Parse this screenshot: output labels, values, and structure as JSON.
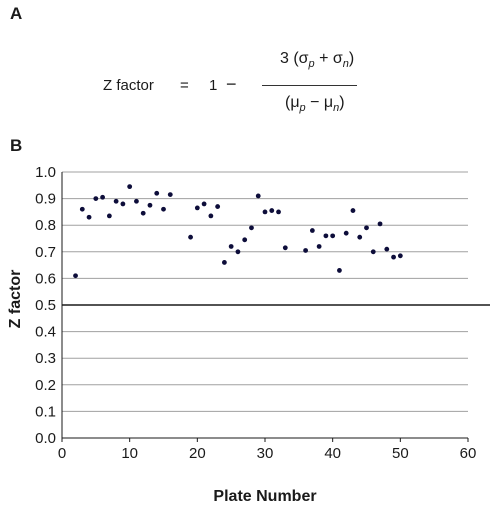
{
  "panels": {
    "a": "A",
    "b": "B"
  },
  "formula": {
    "lhs": "Z factor",
    "eq": "=",
    "one": "1",
    "minus": "−",
    "num_prefix": "3 (σ",
    "num_mid": " + σ",
    "num_suffix": ")",
    "den_prefix": "(μ",
    "den_mid": " − μ",
    "den_suffix": ")",
    "sub_p": "p",
    "sub_n": "n"
  },
  "chart_data": {
    "type": "scatter",
    "xlabel": "Plate Number",
    "ylabel": "Z factor",
    "xlim": [
      0,
      60
    ],
    "ylim": [
      0,
      1.0
    ],
    "x_ticks": [
      0,
      10,
      20,
      30,
      40,
      50,
      60
    ],
    "y_ticks": [
      "0.0",
      "0.1",
      "0.2",
      "0.3",
      "0.4",
      "0.5",
      "0.6",
      "0.7",
      "0.8",
      "0.9",
      "1.0"
    ],
    "grid": "horizontal",
    "threshold": 0.5,
    "colors": {
      "points": "#0d0d3a",
      "grid": "#a0a0a0",
      "threshold": "#1a1a1a"
    },
    "points": [
      {
        "x": 2,
        "y": 0.61
      },
      {
        "x": 3,
        "y": 0.86
      },
      {
        "x": 4,
        "y": 0.83
      },
      {
        "x": 5,
        "y": 0.9
      },
      {
        "x": 6,
        "y": 0.905
      },
      {
        "x": 7,
        "y": 0.835
      },
      {
        "x": 8,
        "y": 0.89
      },
      {
        "x": 9,
        "y": 0.88
      },
      {
        "x": 10,
        "y": 0.945
      },
      {
        "x": 11,
        "y": 0.89
      },
      {
        "x": 12,
        "y": 0.845
      },
      {
        "x": 13,
        "y": 0.875
      },
      {
        "x": 14,
        "y": 0.92
      },
      {
        "x": 15,
        "y": 0.86
      },
      {
        "x": 16,
        "y": 0.915
      },
      {
        "x": 19,
        "y": 0.755
      },
      {
        "x": 20,
        "y": 0.865
      },
      {
        "x": 21,
        "y": 0.88
      },
      {
        "x": 22,
        "y": 0.835
      },
      {
        "x": 23,
        "y": 0.87
      },
      {
        "x": 24,
        "y": 0.66
      },
      {
        "x": 25,
        "y": 0.72
      },
      {
        "x": 26,
        "y": 0.7
      },
      {
        "x": 27,
        "y": 0.745
      },
      {
        "x": 28,
        "y": 0.79
      },
      {
        "x": 29,
        "y": 0.91
      },
      {
        "x": 30,
        "y": 0.85
      },
      {
        "x": 31,
        "y": 0.855
      },
      {
        "x": 32,
        "y": 0.85
      },
      {
        "x": 33,
        "y": 0.715
      },
      {
        "x": 36,
        "y": 0.705
      },
      {
        "x": 37,
        "y": 0.78
      },
      {
        "x": 38,
        "y": 0.72
      },
      {
        "x": 39,
        "y": 0.76
      },
      {
        "x": 40,
        "y": 0.76
      },
      {
        "x": 41,
        "y": 0.63
      },
      {
        "x": 42,
        "y": 0.77
      },
      {
        "x": 43,
        "y": 0.855
      },
      {
        "x": 44,
        "y": 0.755
      },
      {
        "x": 45,
        "y": 0.79
      },
      {
        "x": 46,
        "y": 0.7
      },
      {
        "x": 47,
        "y": 0.805
      },
      {
        "x": 48,
        "y": 0.71
      },
      {
        "x": 49,
        "y": 0.68
      },
      {
        "x": 50,
        "y": 0.685
      }
    ]
  }
}
